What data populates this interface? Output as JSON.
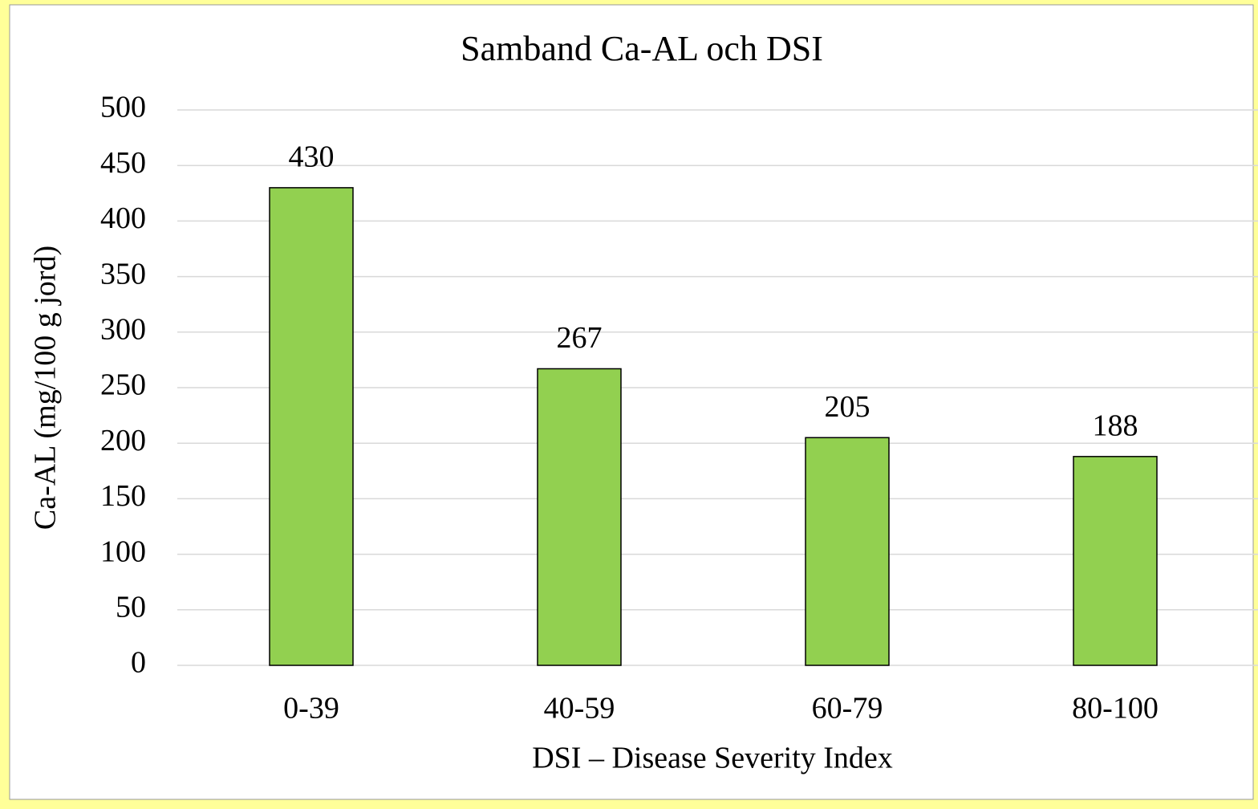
{
  "chart_data": {
    "type": "bar",
    "title": "Samband Ca-AL och DSI",
    "x_label": "DSI – Disease Severity Index",
    "y_label": "Ca-AL (mg/100 g jord)",
    "categories": [
      "0-39",
      "40-59",
      "60-79",
      "80-100"
    ],
    "values": [
      430,
      267,
      205,
      188
    ],
    "color": "#92d050",
    "ylim": [
      0,
      500
    ],
    "yticks": [
      0,
      50,
      100,
      150,
      200,
      250,
      300,
      350,
      400,
      450,
      500
    ],
    "grid": true
  }
}
